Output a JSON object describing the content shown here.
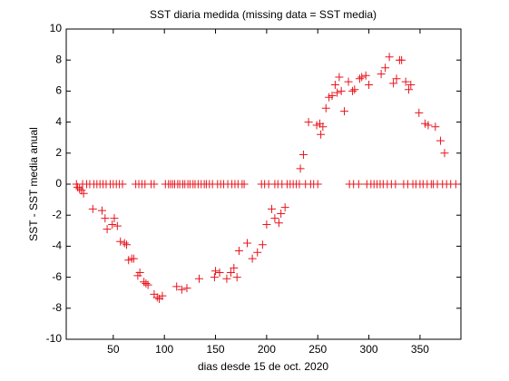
{
  "chart_data": {
    "type": "scatter",
    "title": "SST diaria medida (missing data = SST media)",
    "x_label": "dias desde 15 de oct. 2020",
    "y_label": "SST - SST media anual",
    "xlim": [
      4,
      390
    ],
    "ylim": [
      -10,
      10
    ],
    "xticks": [
      50,
      100,
      150,
      200,
      250,
      300,
      350
    ],
    "yticks": [
      -10,
      -8,
      -6,
      -4,
      -2,
      0,
      2,
      4,
      6,
      8,
      10
    ],
    "grid": false,
    "series": [
      {
        "color": "#e8141c",
        "x": [
          15,
          17,
          19,
          21,
          30,
          39,
          42,
          44,
          49,
          51,
          54,
          57,
          61,
          63,
          65,
          68,
          70,
          74,
          76,
          80,
          82,
          84,
          90,
          93,
          95,
          98,
          112,
          117,
          122,
          134,
          149,
          150,
          154,
          161,
          165,
          168,
          171,
          173,
          181,
          186,
          191,
          196,
          200,
          205,
          208,
          212,
          214,
          218,
          233,
          236,
          241,
          249,
          252,
          253,
          255,
          258,
          261,
          264,
          267,
          269,
          271,
          273,
          276,
          280,
          284,
          286,
          291,
          293,
          297,
          300,
          312,
          316,
          320,
          324,
          327,
          330,
          332,
          336,
          339,
          341,
          349,
          355,
          358,
          365,
          370,
          374,
          14,
          20,
          24,
          27,
          31,
          34,
          37,
          40,
          43,
          47,
          50,
          53,
          56,
          59,
          72,
          75,
          78,
          81,
          87,
          90,
          101,
          104,
          106,
          108,
          110,
          113,
          115,
          118,
          120,
          123,
          125,
          128,
          130,
          133,
          136,
          139,
          141,
          144,
          147,
          152,
          155,
          158,
          162,
          166,
          169,
          172,
          176,
          178,
          195,
          198,
          202,
          208,
          211,
          215,
          220,
          223,
          226,
          229,
          232,
          238,
          243,
          246,
          250,
          281,
          285,
          290,
          298,
          302,
          305,
          308,
          311,
          314,
          318,
          322,
          326,
          334,
          338,
          343,
          346,
          350,
          353,
          357,
          361,
          363,
          367,
          372,
          376,
          380,
          385
        ],
        "values": [
          -0.2,
          -0.3,
          -0.4,
          -0.6,
          -1.6,
          -1.7,
          -2.2,
          -2.9,
          -2.6,
          -2.2,
          -2.7,
          -3.7,
          -3.8,
          -3.9,
          -4.9,
          -4.8,
          -4.8,
          -5.9,
          -5.7,
          -6.3,
          -6.4,
          -6.5,
          -7.1,
          -7.3,
          -7.4,
          -7.2,
          -6.6,
          -6.8,
          -6.7,
          -6.1,
          -6.0,
          -5.6,
          -5.7,
          -6.1,
          -5.7,
          -5.4,
          -6.0,
          -4.3,
          -3.8,
          -4.8,
          -4.4,
          -3.9,
          -2.6,
          -1.6,
          -2.2,
          -2.5,
          -1.9,
          -1.5,
          1.0,
          1.9,
          4.0,
          3.8,
          3.9,
          3.2,
          3.7,
          4.9,
          5.6,
          5.7,
          6.4,
          5.9,
          6.9,
          6.0,
          4.7,
          6.6,
          6.0,
          6.1,
          6.8,
          6.9,
          7.0,
          6.4,
          7.1,
          7.5,
          8.2,
          6.5,
          6.8,
          8.0,
          8.0,
          6.6,
          6.1,
          6.4,
          4.6,
          3.9,
          3.8,
          3.7,
          2.8,
          2.0,
          0,
          0,
          0,
          0,
          0,
          0,
          0,
          0,
          0,
          0,
          0,
          0,
          0,
          0,
          0,
          0,
          0,
          0,
          0,
          0,
          0,
          0,
          0,
          0,
          0,
          0,
          0,
          0,
          0,
          0,
          0,
          0,
          0,
          0,
          0,
          0,
          0,
          0,
          0,
          0,
          0,
          0,
          0,
          0,
          0,
          0,
          0,
          0,
          0,
          0,
          0,
          0,
          0,
          0,
          0,
          0,
          0,
          0,
          0,
          0,
          0,
          0,
          0,
          0,
          0,
          0,
          0,
          0,
          0,
          0,
          0,
          0,
          0,
          0,
          0,
          0,
          0,
          0,
          0,
          0,
          0,
          0,
          0,
          0,
          0,
          0,
          0,
          0,
          0
        ]
      }
    ]
  }
}
